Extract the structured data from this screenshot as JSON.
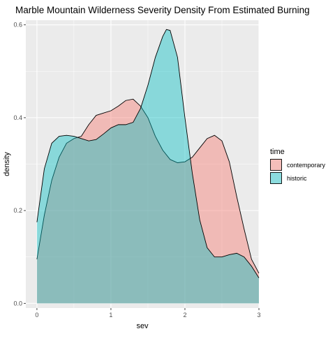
{
  "chart_data": {
    "type": "area",
    "title": "Marble Mountain Wilderness Severity Density From Estimated Burning",
    "xlabel": "sev",
    "ylabel": "density",
    "xlim": [
      -0.15,
      3.0
    ],
    "ylim": [
      -0.01,
      0.61
    ],
    "x_ticks": [
      0,
      1,
      2,
      3
    ],
    "y_ticks": [
      0.0,
      0.2,
      0.4,
      0.6
    ],
    "x_tick_labels": [
      "0",
      "1",
      "2",
      "3"
    ],
    "y_tick_labels": [
      "0.0",
      "0.2",
      "0.4",
      "0.6"
    ],
    "grid": true,
    "panel_background": "#ebebeb",
    "legend": {
      "title": "time",
      "position": "right"
    },
    "series": [
      {
        "name": "contemporary",
        "color": "#f8766d",
        "points": [
          [
            0.0,
            0.095
          ],
          [
            0.1,
            0.19
          ],
          [
            0.2,
            0.265
          ],
          [
            0.3,
            0.315
          ],
          [
            0.4,
            0.345
          ],
          [
            0.5,
            0.355
          ],
          [
            0.6,
            0.36
          ],
          [
            0.7,
            0.385
          ],
          [
            0.8,
            0.405
          ],
          [
            0.9,
            0.41
          ],
          [
            1.0,
            0.415
          ],
          [
            1.1,
            0.425
          ],
          [
            1.2,
            0.437
          ],
          [
            1.3,
            0.44
          ],
          [
            1.4,
            0.425
          ],
          [
            1.5,
            0.4
          ],
          [
            1.6,
            0.36
          ],
          [
            1.7,
            0.33
          ],
          [
            1.8,
            0.31
          ],
          [
            1.9,
            0.303
          ],
          [
            2.0,
            0.305
          ],
          [
            2.1,
            0.315
          ],
          [
            2.2,
            0.335
          ],
          [
            2.3,
            0.355
          ],
          [
            2.4,
            0.362
          ],
          [
            2.5,
            0.35
          ],
          [
            2.6,
            0.305
          ],
          [
            2.7,
            0.23
          ],
          [
            2.8,
            0.16
          ],
          [
            2.9,
            0.095
          ],
          [
            3.0,
            0.065
          ]
        ]
      },
      {
        "name": "historic",
        "color": "#00bfc4",
        "points": [
          [
            0.0,
            0.175
          ],
          [
            0.1,
            0.29
          ],
          [
            0.2,
            0.345
          ],
          [
            0.3,
            0.36
          ],
          [
            0.4,
            0.362
          ],
          [
            0.5,
            0.36
          ],
          [
            0.6,
            0.355
          ],
          [
            0.7,
            0.35
          ],
          [
            0.8,
            0.353
          ],
          [
            0.9,
            0.365
          ],
          [
            1.0,
            0.378
          ],
          [
            1.1,
            0.385
          ],
          [
            1.2,
            0.385
          ],
          [
            1.3,
            0.39
          ],
          [
            1.4,
            0.42
          ],
          [
            1.5,
            0.47
          ],
          [
            1.6,
            0.53
          ],
          [
            1.7,
            0.575
          ],
          [
            1.75,
            0.59
          ],
          [
            1.8,
            0.588
          ],
          [
            1.9,
            0.53
          ],
          [
            2.0,
            0.4
          ],
          [
            2.1,
            0.28
          ],
          [
            2.2,
            0.18
          ],
          [
            2.3,
            0.12
          ],
          [
            2.4,
            0.1
          ],
          [
            2.5,
            0.1
          ],
          [
            2.6,
            0.105
          ],
          [
            2.7,
            0.108
          ],
          [
            2.8,
            0.1
          ],
          [
            2.9,
            0.08
          ],
          [
            3.0,
            0.055
          ]
        ]
      }
    ]
  }
}
